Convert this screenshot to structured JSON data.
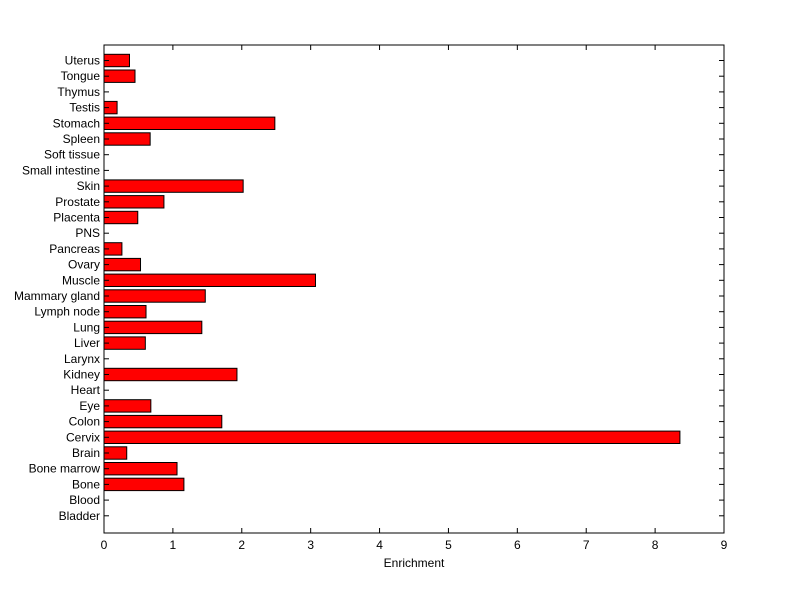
{
  "chart_data": {
    "type": "bar",
    "orientation": "horizontal",
    "categories": [
      "Bladder",
      "Blood",
      "Bone",
      "Bone marrow",
      "Brain",
      "Cervix",
      "Colon",
      "Eye",
      "Heart",
      "Kidney",
      "Larynx",
      "Liver",
      "Lung",
      "Lymph node",
      "Mammary gland",
      "Muscle",
      "Ovary",
      "Pancreas",
      "PNS",
      "Placenta",
      "Prostate",
      "Skin",
      "Small intestine",
      "Soft tissue",
      "Spleen",
      "Stomach",
      "Testis",
      "Thymus",
      "Tongue",
      "Uterus"
    ],
    "values": [
      0,
      0,
      1.16,
      1.06,
      0.33,
      8.36,
      1.71,
      0.68,
      0,
      1.93,
      0,
      0.6,
      1.42,
      0.61,
      1.47,
      3.07,
      0.53,
      0.26,
      0,
      0.49,
      0.87,
      2.02,
      0,
      0,
      0.67,
      2.48,
      0.19,
      0,
      0.45,
      0.37
    ],
    "xlabel": "Enrichment",
    "ylabel": "",
    "xlim": [
      0,
      9
    ],
    "xticks": [
      "0",
      "1",
      "2",
      "3",
      "4",
      "5",
      "6",
      "7",
      "8",
      "9"
    ],
    "grid": false,
    "bar_color": "#ff0000",
    "edge_color": "#000000"
  }
}
